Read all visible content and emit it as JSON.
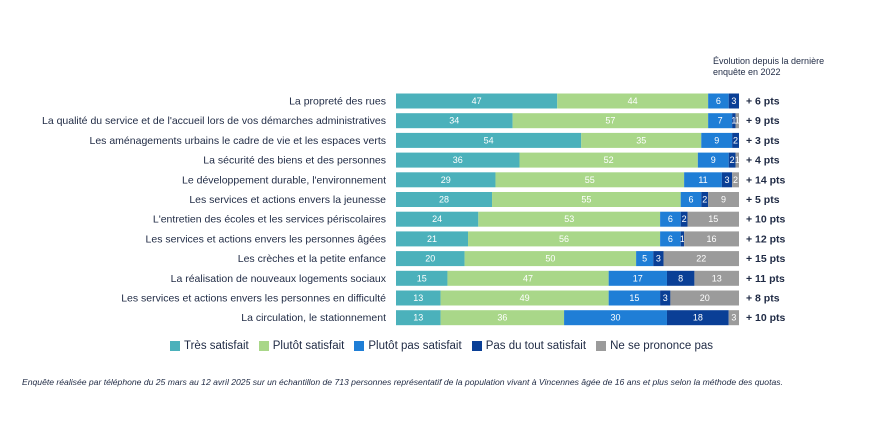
{
  "chart_data": {
    "type": "bar",
    "orientation": "horizontal-stacked",
    "evolution_header": "Évolution depuis la dernière enquête en 2022",
    "categories": [
      "La propreté des rues",
      "La qualité du service et de l'accueil lors de vos démarches administratives",
      "Les aménagements urbains le cadre de vie et les espaces verts",
      "La sécurité des biens et des personnes",
      "Le développement durable, l'environnement",
      "Les services et actions envers la jeunesse",
      "L'entretien des écoles et les services périscolaires",
      "Les services et actions envers les personnes âgées",
      "Les crèches et la petite enfance",
      "La réalisation de nouveaux logements sociaux",
      "Les services et actions envers les personnes en difficulté",
      "La circulation, le stationnement"
    ],
    "series": [
      {
        "name": "Très satisfait",
        "color": "#4bb1bb",
        "values": [
          47,
          34,
          54,
          36,
          29,
          28,
          24,
          21,
          20,
          15,
          13,
          13
        ]
      },
      {
        "name": "Plutôt satisfait",
        "color": "#a9d789",
        "values": [
          44,
          57,
          35,
          52,
          55,
          55,
          53,
          56,
          50,
          47,
          49,
          36
        ]
      },
      {
        "name": "Plutôt pas satisfait",
        "color": "#1f7ed6",
        "values": [
          6,
          7,
          9,
          9,
          11,
          6,
          6,
          6,
          5,
          17,
          15,
          30
        ]
      },
      {
        "name": "Pas du tout satisfait",
        "color": "#0a3f96",
        "values": [
          3,
          1,
          2,
          2,
          3,
          2,
          2,
          1,
          3,
          8,
          3,
          18
        ]
      },
      {
        "name": "Ne se prononce pas",
        "color": "#9b9b9b",
        "values": [
          0,
          1,
          0,
          1,
          2,
          9,
          15,
          16,
          22,
          13,
          20,
          3
        ]
      }
    ],
    "evolution": [
      "+ 6 pts",
      "+ 9 pts",
      "+ 3 pts",
      "+ 4 pts",
      "+ 14 pts",
      "+ 5 pts",
      "+ 10 pts",
      "+ 12 pts",
      "+ 15 pts",
      "+ 11 pts",
      "+ 8 pts",
      "+ 10 pts"
    ],
    "xlim": [
      0,
      100
    ]
  },
  "footnote": "Enquête réalisée par téléphone du 25 mars au 12 avril 2025 sur un échantillon de 713 personnes représentatif de la population vivant à Vincennes âgée de 16 ans et plus selon la méthode des quotas."
}
